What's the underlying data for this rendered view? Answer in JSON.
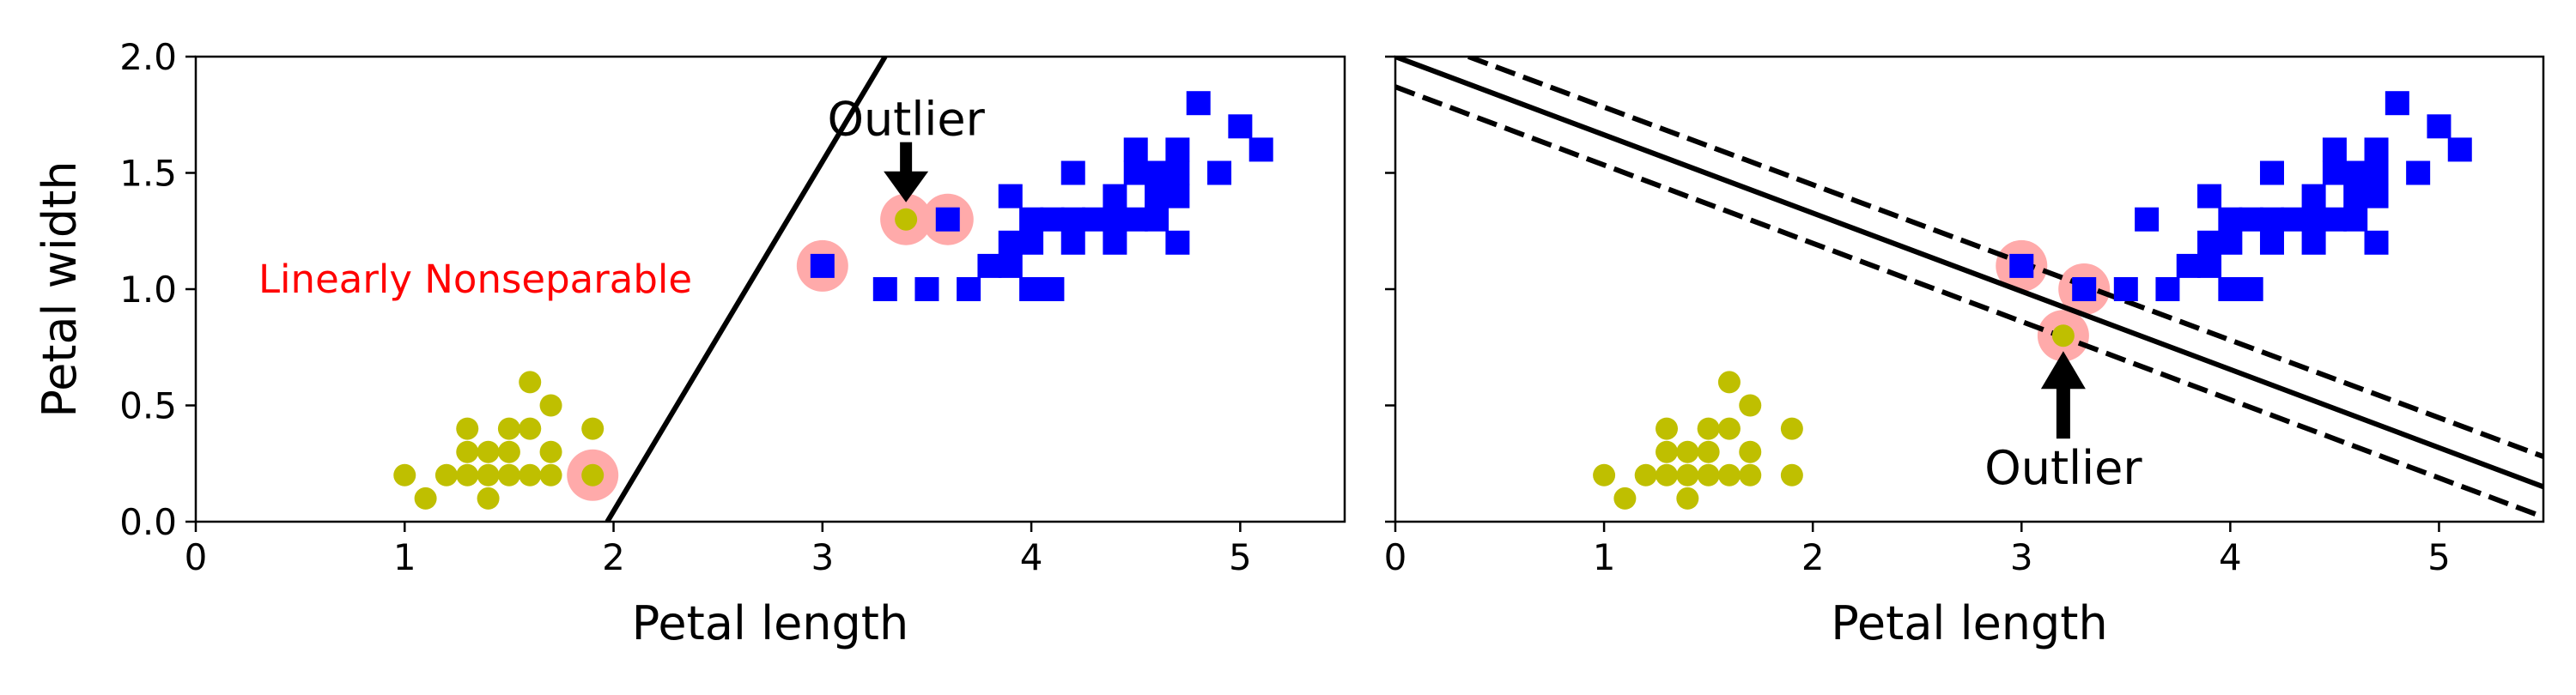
{
  "chart_data": [
    {
      "type": "scatter",
      "panel": "left",
      "xlabel": "Petal length",
      "ylabel": "Petal width",
      "xlim": [
        0,
        5.5
      ],
      "ylim": [
        0,
        2.0
      ],
      "xticks": [
        "0",
        "1",
        "2",
        "3",
        "4",
        "5"
      ],
      "yticks": [
        "0.0",
        "0.5",
        "1.0",
        "1.5",
        "2.0"
      ],
      "series": [
        {
          "marker": "circle",
          "color": "#bfbf00",
          "points": [
            [
              1.0,
              0.2
            ],
            [
              1.1,
              0.1
            ],
            [
              1.2,
              0.2
            ],
            [
              1.3,
              0.2
            ],
            [
              1.3,
              0.3
            ],
            [
              1.3,
              0.4
            ],
            [
              1.4,
              0.1
            ],
            [
              1.4,
              0.2
            ],
            [
              1.4,
              0.3
            ],
            [
              1.5,
              0.2
            ],
            [
              1.5,
              0.3
            ],
            [
              1.5,
              0.4
            ],
            [
              1.6,
              0.2
            ],
            [
              1.6,
              0.4
            ],
            [
              1.6,
              0.6
            ],
            [
              1.7,
              0.2
            ],
            [
              1.7,
              0.3
            ],
            [
              1.7,
              0.5
            ],
            [
              1.9,
              0.2
            ],
            [
              1.9,
              0.4
            ],
            [
              3.4,
              1.3
            ]
          ]
        },
        {
          "marker": "square",
          "color": "#0000ff",
          "points": [
            [
              3.0,
              1.1
            ],
            [
              3.3,
              1.0
            ],
            [
              3.5,
              1.0
            ],
            [
              3.6,
              1.3
            ],
            [
              3.7,
              1.0
            ],
            [
              3.8,
              1.1
            ],
            [
              3.9,
              1.1
            ],
            [
              3.9,
              1.2
            ],
            [
              3.9,
              1.4
            ],
            [
              4.0,
              1.0
            ],
            [
              4.0,
              1.2
            ],
            [
              4.0,
              1.3
            ],
            [
              4.1,
              1.0
            ],
            [
              4.1,
              1.3
            ],
            [
              4.2,
              1.2
            ],
            [
              4.2,
              1.3
            ],
            [
              4.2,
              1.5
            ],
            [
              4.3,
              1.3
            ],
            [
              4.4,
              1.2
            ],
            [
              4.4,
              1.3
            ],
            [
              4.4,
              1.4
            ],
            [
              4.5,
              1.3
            ],
            [
              4.5,
              1.5
            ],
            [
              4.5,
              1.6
            ],
            [
              4.6,
              1.3
            ],
            [
              4.6,
              1.4
            ],
            [
              4.6,
              1.5
            ],
            [
              4.7,
              1.2
            ],
            [
              4.7,
              1.4
            ],
            [
              4.7,
              1.5
            ],
            [
              4.7,
              1.6
            ],
            [
              4.8,
              1.8
            ],
            [
              4.9,
              1.5
            ],
            [
              5.0,
              1.7
            ],
            [
              5.1,
              1.6
            ]
          ]
        }
      ],
      "highlights": [
        [
          1.9,
          0.2
        ],
        [
          3.0,
          1.1
        ],
        [
          3.4,
          1.3
        ],
        [
          3.6,
          1.3
        ]
      ],
      "highlight_color": "#ffaaaa",
      "boundary": {
        "points": [
          [
            1.97,
            0.0
          ],
          [
            3.3,
            2.0
          ]
        ],
        "style": "solid"
      },
      "annotations": [
        {
          "text": "Outlier",
          "xy": [
            3.4,
            1.3
          ],
          "text_at": [
            3.4,
            1.7
          ],
          "arrow": true
        },
        {
          "text": "Linearly Nonseparable",
          "color": "#ff0000",
          "at": [
            0.3,
            1.0
          ]
        }
      ]
    },
    {
      "type": "scatter",
      "panel": "right",
      "xlabel": "Petal length",
      "xlim": [
        0,
        5.5
      ],
      "ylim": [
        0,
        2.0
      ],
      "xticks": [
        "0",
        "1",
        "2",
        "3",
        "4",
        "5"
      ],
      "series": [
        {
          "marker": "circle",
          "color": "#bfbf00",
          "points": [
            [
              1.0,
              0.2
            ],
            [
              1.1,
              0.1
            ],
            [
              1.2,
              0.2
            ],
            [
              1.3,
              0.2
            ],
            [
              1.3,
              0.3
            ],
            [
              1.3,
              0.4
            ],
            [
              1.4,
              0.1
            ],
            [
              1.4,
              0.2
            ],
            [
              1.4,
              0.3
            ],
            [
              1.5,
              0.2
            ],
            [
              1.5,
              0.3
            ],
            [
              1.5,
              0.4
            ],
            [
              1.6,
              0.2
            ],
            [
              1.6,
              0.4
            ],
            [
              1.6,
              0.6
            ],
            [
              1.7,
              0.2
            ],
            [
              1.7,
              0.3
            ],
            [
              1.7,
              0.5
            ],
            [
              1.9,
              0.2
            ],
            [
              1.9,
              0.4
            ],
            [
              3.2,
              0.8
            ]
          ]
        },
        {
          "marker": "square",
          "color": "#0000ff",
          "points": [
            [
              3.0,
              1.1
            ],
            [
              3.3,
              1.0
            ],
            [
              3.5,
              1.0
            ],
            [
              3.6,
              1.3
            ],
            [
              3.7,
              1.0
            ],
            [
              3.8,
              1.1
            ],
            [
              3.9,
              1.1
            ],
            [
              3.9,
              1.2
            ],
            [
              3.9,
              1.4
            ],
            [
              4.0,
              1.0
            ],
            [
              4.0,
              1.2
            ],
            [
              4.0,
              1.3
            ],
            [
              4.1,
              1.0
            ],
            [
              4.1,
              1.3
            ],
            [
              4.2,
              1.2
            ],
            [
              4.2,
              1.3
            ],
            [
              4.2,
              1.5
            ],
            [
              4.3,
              1.3
            ],
            [
              4.4,
              1.2
            ],
            [
              4.4,
              1.3
            ],
            [
              4.4,
              1.4
            ],
            [
              4.5,
              1.3
            ],
            [
              4.5,
              1.5
            ],
            [
              4.5,
              1.6
            ],
            [
              4.6,
              1.3
            ],
            [
              4.6,
              1.4
            ],
            [
              4.6,
              1.5
            ],
            [
              4.7,
              1.2
            ],
            [
              4.7,
              1.4
            ],
            [
              4.7,
              1.5
            ],
            [
              4.7,
              1.6
            ],
            [
              4.8,
              1.8
            ],
            [
              4.9,
              1.5
            ],
            [
              5.0,
              1.7
            ],
            [
              5.1,
              1.6
            ]
          ]
        }
      ],
      "highlights": [
        [
          3.0,
          1.1
        ],
        [
          3.2,
          0.8
        ],
        [
          3.3,
          1.0
        ]
      ],
      "highlight_color": "#ffaaaa",
      "boundary": {
        "points": [
          [
            0,
            2.0
          ],
          [
            5.5,
            0.15
          ]
        ],
        "style": "solid"
      },
      "margins": [
        {
          "points": [
            [
              0.35,
              2.0
            ],
            [
              5.5,
              0.28
            ]
          ],
          "style": "dashed"
        },
        {
          "points": [
            [
              0,
              1.87
            ],
            [
              5.5,
              0.02
            ]
          ],
          "style": "dashed"
        }
      ],
      "annotations": [
        {
          "text": "Outlier",
          "xy": [
            3.2,
            0.8
          ],
          "text_at": [
            3.2,
            0.2
          ],
          "arrow": true
        }
      ]
    }
  ]
}
